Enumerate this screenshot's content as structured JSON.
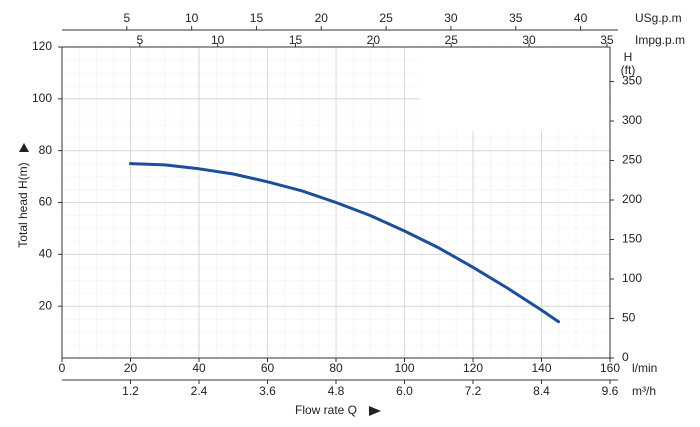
{
  "chart_data": {
    "type": "line",
    "x_label": "Flow rate Q",
    "y_label": "Total head H(m)",
    "x_unit": "l/min",
    "x": [
      20,
      30,
      40,
      50,
      60,
      70,
      80,
      90,
      100,
      110,
      120,
      130,
      140,
      145
    ],
    "series": [
      {
        "color": "#1a4f9c",
        "values": [
          75,
          74.5,
          73,
          71,
          68,
          64.5,
          60,
          55,
          49,
          42.5,
          35,
          27,
          18.5,
          14
        ]
      }
    ],
    "xlim": [
      0,
      160
    ],
    "xticks": [
      0,
      20,
      40,
      60,
      80,
      100,
      120,
      140,
      160
    ],
    "ylim": [
      0,
      120
    ],
    "yticks": [
      20,
      40,
      60,
      80,
      100,
      120
    ],
    "y2_label": [
      "H",
      "(ft)"
    ],
    "y2lim": [
      0,
      393.7
    ],
    "y2ticks": [
      0,
      50,
      100,
      150,
      200,
      250,
      300,
      350
    ],
    "extra_x_axes": [
      {
        "label": "m³/h",
        "lim": [
          0,
          9.6
        ],
        "ticks": [
          1.2,
          2.4,
          3.6,
          4.8,
          {
            "value": 6,
            "label": "6.0"
          },
          7.2,
          8.4,
          9.6
        ]
      },
      {
        "label": "USg.p.m",
        "lim": [
          0,
          42.27
        ],
        "ticks": [
          5,
          10,
          15,
          20,
          25,
          30,
          35,
          40
        ]
      },
      {
        "label": "Impg.p.m",
        "lim": [
          0,
          35.2
        ],
        "ticks": [
          5,
          10,
          15,
          20,
          25,
          30,
          35
        ]
      }
    ],
    "grid": true
  }
}
